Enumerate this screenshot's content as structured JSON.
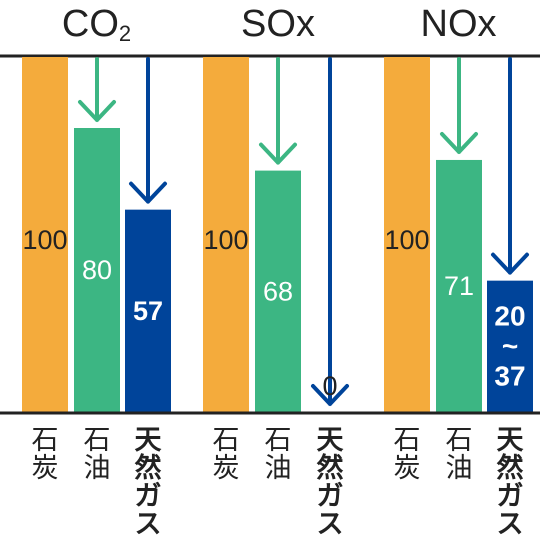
{
  "chart_data": {
    "type": "bar",
    "categories": [
      "石炭",
      "石油",
      "天然ガス"
    ],
    "category_vertical": [
      [
        "石",
        "炭"
      ],
      [
        "石",
        "油"
      ],
      [
        "天",
        "然",
        "ガ",
        "ス"
      ]
    ],
    "groups": [
      {
        "title": "CO",
        "title_sub": "2",
        "values": [
          100,
          80,
          57
        ],
        "labels": [
          [
            "100"
          ],
          [
            "80"
          ],
          [
            "57"
          ]
        ]
      },
      {
        "title": "SOx",
        "title_sub": "",
        "values": [
          100,
          68,
          0
        ],
        "labels": [
          [
            "100"
          ],
          [
            "68"
          ],
          [
            "0"
          ]
        ]
      },
      {
        "title": "NOx",
        "title_sub": "",
        "values": [
          100,
          71,
          37
        ],
        "range_low": 20,
        "labels": [
          [
            "100"
          ],
          [
            "71"
          ],
          [
            "20",
            "~",
            "37"
          ]
        ]
      }
    ],
    "ylim": [
      0,
      100
    ],
    "colors": {
      "coal": "#F4AB3C",
      "oil": "#3CB683",
      "gas": "#00449A",
      "oil_arrow": "#3CB683",
      "gas_arrow": "#00449A",
      "axis": "#222222",
      "text_dark": "#222222",
      "text_light": "#ffffff"
    }
  }
}
